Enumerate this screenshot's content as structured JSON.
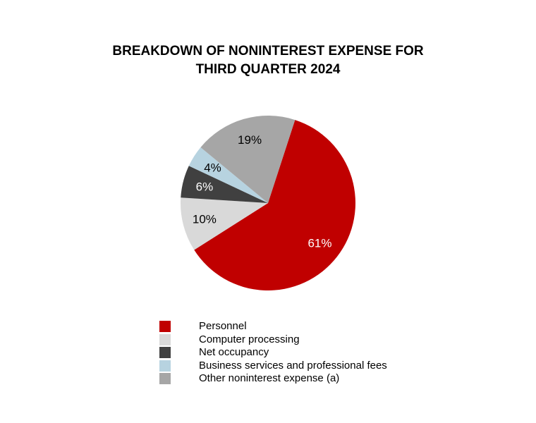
{
  "chart_data": {
    "type": "pie",
    "title_lines": [
      "BREAKDOWN OF NONINTEREST EXPENSE FOR",
      "THIRD QUARTER 2024"
    ],
    "start_angle_deg": 18,
    "direction": "clockwise",
    "legend_position": "bottom",
    "slices": [
      {
        "name": "Personnel",
        "value": 61,
        "label": "61%",
        "color": "#c00000",
        "label_color": "#ffffff"
      },
      {
        "name": "Computer processing",
        "value": 10,
        "label": "10%",
        "color": "#d9d9d9",
        "label_color": "#000000"
      },
      {
        "name": "Net occupancy",
        "value": 6,
        "label": "6%",
        "color": "#404040",
        "label_color": "#ffffff"
      },
      {
        "name": "Business services and professional fees",
        "value": 4,
        "label": "4%",
        "color": "#b7d3e0",
        "label_color": "#000000"
      },
      {
        "name": "Other noninterest expense (a)",
        "value": 19,
        "label": "19%",
        "color": "#a6a6a6",
        "label_color": "#000000"
      }
    ]
  }
}
